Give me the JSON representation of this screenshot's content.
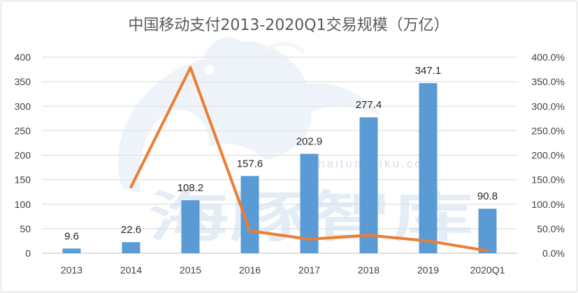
{
  "chart_data": {
    "type": "bar",
    "title": "中国移动支付2013-2020Q1交易规模（万亿）",
    "categories": [
      "2013",
      "2014",
      "2015",
      "2016",
      "2017",
      "2018",
      "2019",
      "2020Q1"
    ],
    "series": [
      {
        "type": "bar",
        "axis": "left",
        "color": "#5b9bd5",
        "values": [
          9.6,
          22.6,
          108.2,
          157.6,
          202.9,
          277.4,
          347.1,
          90.8
        ]
      },
      {
        "type": "line",
        "axis": "right",
        "color": "#ed7d31",
        "values": [
          null,
          135.4,
          378.8,
          45.7,
          28.7,
          36.7,
          25.1,
          5.0
        ]
      }
    ],
    "y_left": {
      "range": [
        0,
        400
      ],
      "ticks": [
        "0",
        "50",
        "100",
        "150",
        "200",
        "250",
        "300",
        "350",
        "400"
      ]
    },
    "y_right": {
      "range": [
        0,
        400
      ],
      "ticks": [
        "0.0%",
        "50.0%",
        "100.0%",
        "150.0%",
        "200.0%",
        "250.0%",
        "300.0%",
        "350.0%",
        "400.0%"
      ]
    },
    "data_labels": [
      "9.6",
      "22.6",
      "108.2",
      "157.6",
      "202.9",
      "277.4",
      "347.1",
      "90.8"
    ],
    "gridlines": true,
    "legend": "none"
  },
  "watermark": {
    "text": "海豚智库",
    "url": "haitunzhiku.com",
    "icon": "dolphin-logo"
  }
}
